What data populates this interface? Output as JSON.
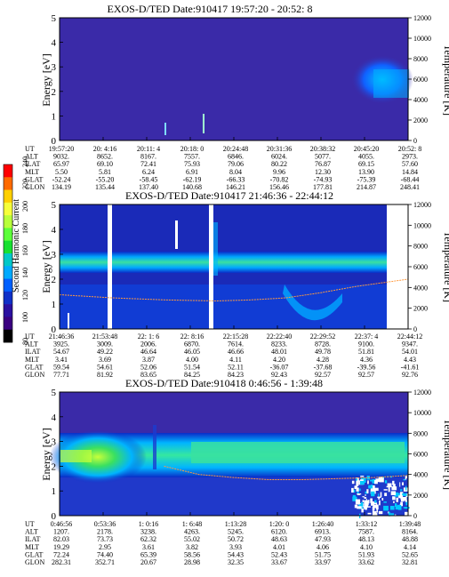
{
  "colorbar": {
    "label": "Second Harmonic Current",
    "ticks": [
      "240",
      "220",
      "200",
      "180",
      "160",
      "140",
      "120",
      "100",
      "80"
    ],
    "colors": [
      "#ff0000",
      "#ff6a00",
      "#ffd000",
      "#f6ff3a",
      "#b8ff3a",
      "#5cff3a",
      "#17e030",
      "#00c8c8",
      "#00aaff",
      "#0060ff",
      "#1030c8",
      "#2a10a0",
      "#3a0080",
      "#000000"
    ]
  },
  "chart_data": [
    {
      "type": "heatmap",
      "title": "EXOS-D/TED   Date:910417  19:57:20 - 20:52: 8",
      "ylabel": "Energy [eV]",
      "y2label": "Temperature [K]",
      "ylim": [
        0,
        5
      ],
      "y2lim": [
        0,
        12000
      ],
      "yticks": [
        "0",
        "1",
        "2",
        "3",
        "4",
        "5"
      ],
      "y2ticks": [
        "0",
        "2000",
        "4000",
        "6000",
        "8000",
        "10000",
        "12000"
      ],
      "row_labels": [
        "UT",
        "ALT",
        "ILAT",
        "MLT",
        "GLAT",
        "GLON"
      ],
      "columns": [
        [
          "19:57:20",
          "9032.",
          "65.97",
          "5.50",
          "-52.24",
          "134.19"
        ],
        [
          "20: 4:16",
          "8652.",
          "69.10",
          "5.81",
          "-55.20",
          "135.44"
        ],
        [
          "20:11: 4",
          "8167.",
          "72.41",
          "6.24",
          "-58.45",
          "137.40"
        ],
        [
          "20:18: 0",
          "7557.",
          "75.93",
          "6.91",
          "-62.19",
          "140.68"
        ],
        [
          "20:24:48",
          "6846.",
          "79.06",
          "8.04",
          "-66.33",
          "146.21"
        ],
        [
          "20:31:36",
          "6024.",
          "80.22",
          "9.96",
          "-70.82",
          "156.46"
        ],
        [
          "20:38:32",
          "5077.",
          "76.87",
          "12.30",
          "-74.93",
          "177.81"
        ],
        [
          "20:45:20",
          "4055.",
          "69.15",
          "13.90",
          "-75.39",
          "214.87"
        ],
        [
          "20:52: 8",
          "2973.",
          "57.60",
          "14.84",
          "-68.44",
          "248.41"
        ]
      ],
      "features": "background mostly uniform low level; enhancement at 1.5-3.5 eV near end of interval; no temperature trace"
    },
    {
      "type": "heatmap",
      "title": "EXOS-D/TED   Date:910417  21:46:36 - 22:44:12",
      "ylabel": "Energy [eV]",
      "y2label": "Temperature [K]",
      "ylim": [
        0,
        5
      ],
      "y2lim": [
        0,
        12000
      ],
      "yticks": [
        "0",
        "1",
        "2",
        "3",
        "4",
        "5"
      ],
      "y2ticks": [
        "0",
        "2000",
        "4000",
        "6000",
        "8000",
        "10000",
        "12000"
      ],
      "row_labels": [
        "UT",
        "ALT",
        "ILAT",
        "MLT",
        "GLAT",
        "GLON"
      ],
      "columns": [
        [
          "21:46:36",
          "3925.",
          "54.67",
          "3.41",
          "59.54",
          "77.71"
        ],
        [
          "21:53:48",
          "3009.",
          "49.22",
          "3.69",
          "54.61",
          "81.92"
        ],
        [
          "22: 1: 6",
          "2006.",
          "46.64",
          "3.87",
          "52.06",
          "83.65"
        ],
        [
          "22: 8:16",
          "6870.",
          "46.05",
          "4.00",
          "51.54",
          "84.25"
        ],
        [
          "22:15:28",
          "7614.",
          "46.66",
          "4.11",
          "52.11",
          "84.23"
        ],
        [
          "22:22:40",
          "8233.",
          "48.01",
          "4.20",
          "-36.07",
          "92.43"
        ],
        [
          "22:29:52",
          "8728.",
          "49.78",
          "4.28",
          "-37.68",
          "92.57"
        ],
        [
          "22:37: 4",
          "9100.",
          "51.81",
          "4.36",
          "-39.56",
          "92.57"
        ],
        [
          "22:44:12",
          "9347.",
          "54.01",
          "4.43",
          "-41.61",
          "92.76"
        ]
      ],
      "band_energy_range": [
        2.4,
        3.0
      ],
      "temperature_trace": {
        "x_fraction": [
          0.0,
          0.15,
          0.3,
          0.45,
          0.55,
          0.65,
          0.75,
          0.85,
          1.0
        ],
        "temperature_K": [
          3300,
          3000,
          2800,
          2700,
          2800,
          3000,
          3500,
          4100,
          4800
        ]
      },
      "features": "bright band near 2.5-3 eV; white data gaps; dip structure near 22:29"
    },
    {
      "type": "heatmap",
      "title": "EXOS-D/TED   Date:910418   0:46:56 - 1:39:48",
      "ylabel": "Energy [eV]",
      "y2label": "Temperature [K]",
      "ylim": [
        0,
        5
      ],
      "y2lim": [
        0,
        12000
      ],
      "yticks": [
        "0",
        "1",
        "2",
        "3",
        "4",
        "5"
      ],
      "y2ticks": [
        "0",
        "2000",
        "4000",
        "6000",
        "8000",
        "10000",
        "12000"
      ],
      "row_labels": [
        "UT",
        "ALT",
        "ILAT",
        "MLT",
        "GLAT",
        "GLON"
      ],
      "columns": [
        [
          "0:46:56",
          "1207.",
          "82.03",
          "19.29",
          "72.24",
          "282.31"
        ],
        [
          "0:53:36",
          "2178.",
          "73.73",
          "2.95",
          "74.40",
          "352.71"
        ],
        [
          "1: 0:16",
          "3238.",
          "62.32",
          "3.61",
          "65.39",
          "20.67"
        ],
        [
          "1: 6:48",
          "4263.",
          "55.02",
          "3.82",
          "58.56",
          "28.98"
        ],
        [
          "1:13:28",
          "5245.",
          "50.72",
          "3.93",
          "54.43",
          "32.35"
        ],
        [
          "1:20: 0",
          "6120.",
          "48.63",
          "4.01",
          "52.43",
          "33.67"
        ],
        [
          "1:26:40",
          "6913.",
          "47.93",
          "4.06",
          "51.75",
          "33.97"
        ],
        [
          "1:33:12",
          "7587.",
          "48.13",
          "4.10",
          "51.93",
          "33.62"
        ],
        [
          "1:39:48",
          "8164.",
          "48.88",
          "4.14",
          "52.65",
          "32.81"
        ]
      ],
      "band_energy_range": [
        2.1,
        3.0
      ],
      "temperature_trace": {
        "x_fraction": [
          0.3,
          0.4,
          0.5,
          0.6,
          0.7,
          0.8,
          0.9,
          1.0
        ],
        "temperature_K": [
          4800,
          4000,
          3700,
          3500,
          3500,
          3600,
          3700,
          3900
        ]
      },
      "features": "intense green/yellow band 2-3 eV at start; broad band across interval; white sparkle data at high time low energy"
    }
  ]
}
